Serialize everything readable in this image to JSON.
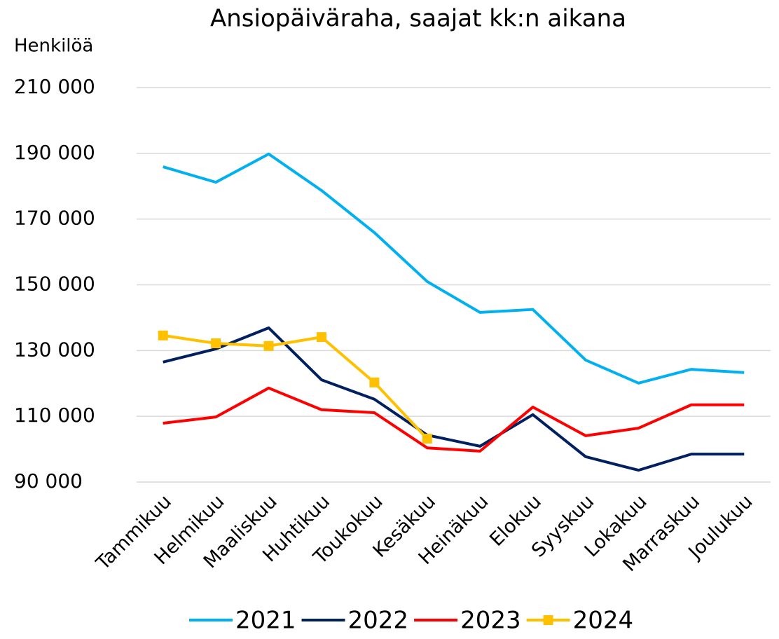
{
  "chart_data": {
    "type": "line",
    "title": "Ansiopäiväraha, saajat kk:n aikana",
    "y_label": "Henkilöä",
    "categories": [
      "Tammikuu",
      "Helmikuu",
      "Maaliskuu",
      "Huhtikuu",
      "Toukokuu",
      "Kesäkuu",
      "Heinäkuu",
      "Elokuu",
      "Syyskuu",
      "Lokakuu",
      "Marraskuu",
      "Joulukuu"
    ],
    "series": [
      {
        "name": "2021",
        "color": "#00b0f0",
        "values": [
          185900,
          181200,
          189800,
          178700,
          165900,
          151000,
          141600,
          142500,
          127100,
          120100,
          124300,
          123300
        ]
      },
      {
        "name": "2022",
        "color": "#002060",
        "values": [
          126500,
          130500,
          136900,
          121100,
          115200,
          104300,
          100900,
          110500,
          97700,
          93600,
          98500,
          98500
        ]
      },
      {
        "name": "2023",
        "color": "#ff0000",
        "values": [
          107900,
          109800,
          118600,
          112000,
          111100,
          100400,
          99400,
          112800,
          104100,
          106400,
          113500,
          113500
        ]
      },
      {
        "name": "2024",
        "color": "#ffc000",
        "marker": "square",
        "values": [
          134600,
          132200,
          131400,
          134100,
          120300,
          103200,
          null,
          null,
          null,
          null,
          null,
          null
        ]
      }
    ],
    "ylim": [
      90000,
      210000
    ],
    "yticks": [
      {
        "value": 90000,
        "label": "90 000"
      },
      {
        "value": 110000,
        "label": "110 000"
      },
      {
        "value": 130000,
        "label": "130 000"
      },
      {
        "value": 150000,
        "label": "150 000"
      },
      {
        "value": 170000,
        "label": "170 000"
      },
      {
        "value": 190000,
        "label": "190 000"
      },
      {
        "value": 210000,
        "label": "210 000"
      }
    ],
    "grid": true,
    "legend": "bottom"
  }
}
